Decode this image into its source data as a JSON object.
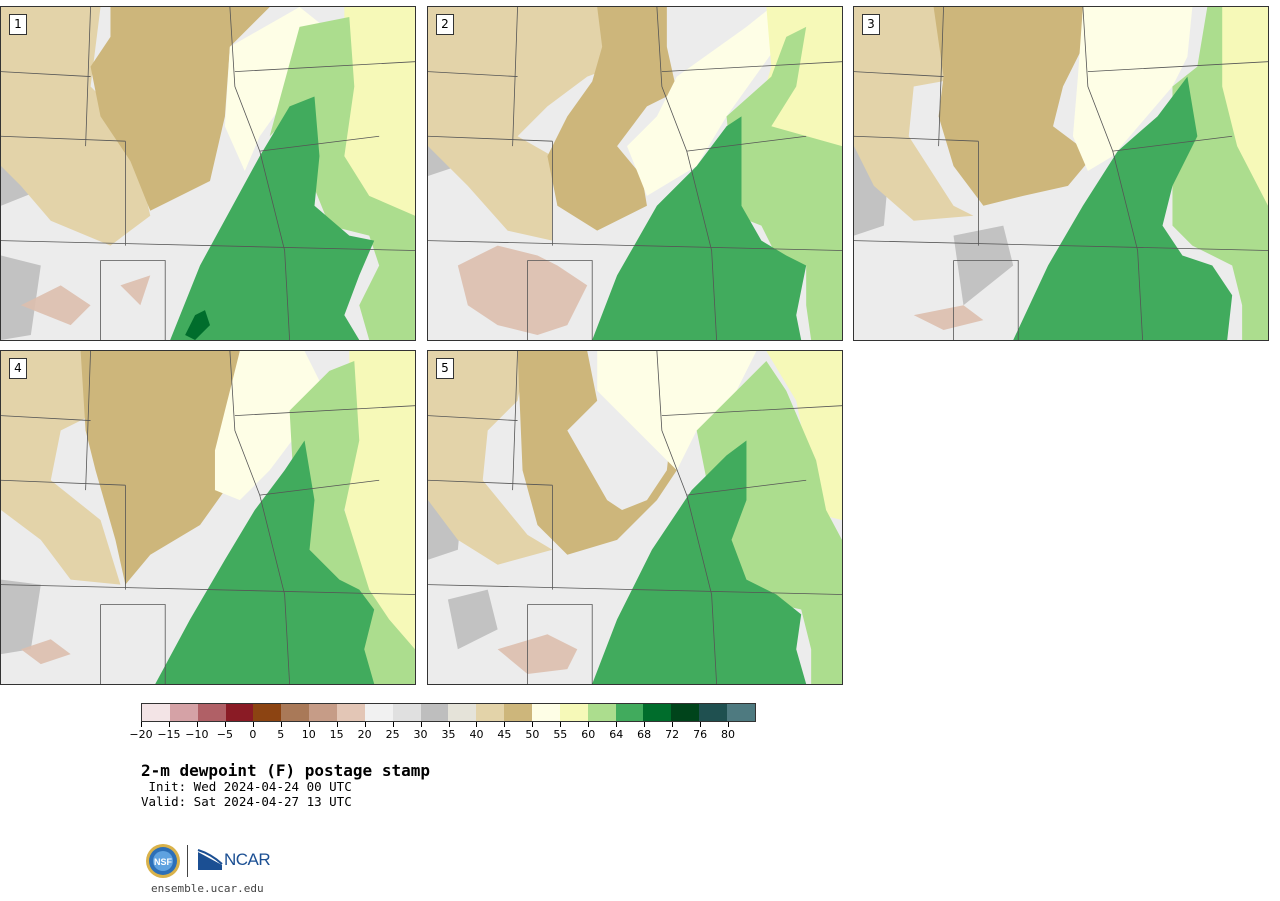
{
  "figure": {
    "title": "2-m dewpoint (F) postage stamp",
    "init": " Init: Wed 2024-04-24 00 UTC",
    "valid": "Valid: Sat 2024-04-27 13 UTC",
    "website": "ensemble.ucar.edu",
    "logos": [
      "NSF",
      "NCAR"
    ]
  },
  "logo_text": "NCAR",
  "panels": [
    {
      "number": "1"
    },
    {
      "number": "2"
    },
    {
      "number": "3"
    },
    {
      "number": "4"
    },
    {
      "number": "5"
    }
  ],
  "colorbar": {
    "unit": "F",
    "colors": [
      "#f3e4e6",
      "#d5a2a6",
      "#b06066",
      "#8a1b25",
      "#8c4412",
      "#a97958",
      "#c69c87",
      "#e3c6b6",
      "#f1f1f1",
      "#e0e0e0",
      "#bebebe",
      "#e5e3d9",
      "#e3d3a9",
      "#cdb67b",
      "#fefee6",
      "#f6f9b8",
      "#acdd8e",
      "#41ab5d",
      "#006d2c",
      "#00441b",
      "#1f5050",
      "#4e7a80"
    ],
    "ticks": [
      "−20",
      "−15",
      "−10",
      "−5",
      "0",
      "5",
      "10",
      "15",
      "20",
      "25",
      "30",
      "35",
      "40",
      "45",
      "50",
      "55",
      "60",
      "64",
      "68",
      "72",
      "76",
      "80"
    ]
  }
}
